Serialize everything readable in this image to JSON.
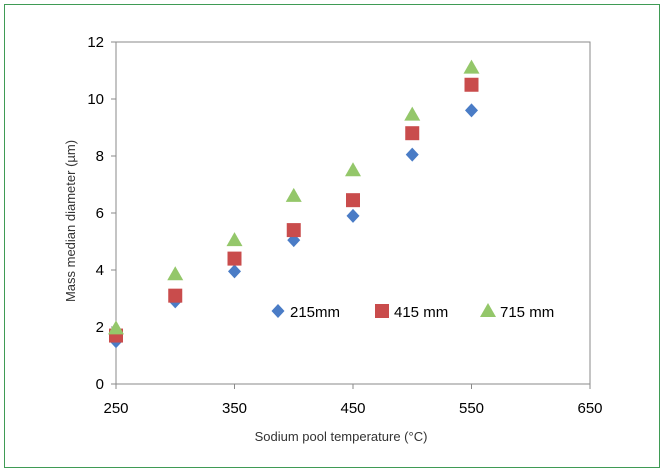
{
  "chart_data": {
    "type": "scatter",
    "title": "",
    "xlabel": "Sodium pool temperature (°C)",
    "ylabel": "Mass median diameter (µm)",
    "xlim": [
      250,
      650
    ],
    "ylim": [
      0,
      12
    ],
    "xticks": [
      "250",
      "350",
      "450",
      "550",
      "650"
    ],
    "yticks": [
      "0",
      "2",
      "4",
      "6",
      "8",
      "10",
      "12"
    ],
    "grid": false,
    "legend_position": "inside-lower-right",
    "series": [
      {
        "name": "215mm",
        "marker": "diamond",
        "color": "#4a7cc6",
        "x": [
          250,
          300,
          350,
          400,
          450,
          500,
          550
        ],
        "y": [
          1.5,
          2.9,
          3.95,
          5.05,
          5.9,
          8.05,
          9.6
        ]
      },
      {
        "name": "415 mm",
        "marker": "square",
        "color": "#c94c4c",
        "x": [
          250,
          300,
          350,
          400,
          450,
          500,
          550
        ],
        "y": [
          1.7,
          3.1,
          4.4,
          5.4,
          6.45,
          8.8,
          10.5
        ]
      },
      {
        "name": "715 mm",
        "marker": "triangle",
        "color": "#94c76a",
        "x": [
          250,
          300,
          350,
          400,
          450,
          500,
          550
        ],
        "y": [
          1.95,
          3.85,
          5.05,
          6.6,
          7.5,
          9.45,
          11.1
        ]
      }
    ]
  }
}
